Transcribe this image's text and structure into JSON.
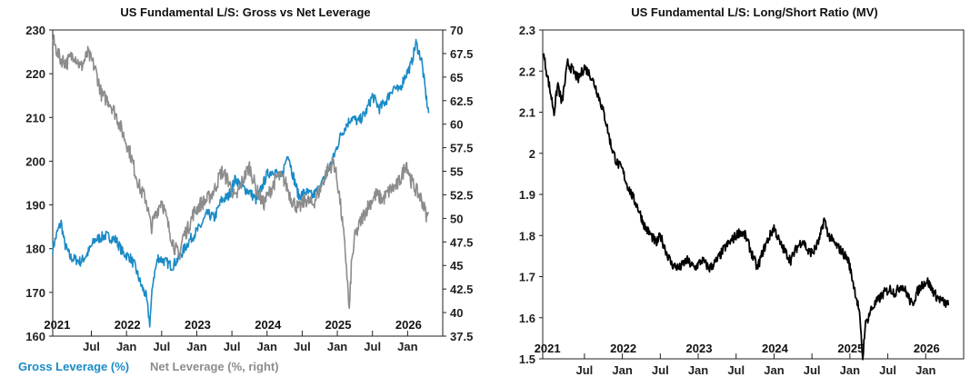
{
  "chart_data": [
    {
      "type": "line",
      "title": "US Fundamental L/S: Gross vs Net Leverage",
      "y_left": {
        "ylim": [
          160,
          230
        ],
        "ticks": [
          "160",
          "170",
          "180",
          "190",
          "200",
          "210",
          "220",
          "230"
        ]
      },
      "y_right": {
        "ylim": [
          37.5,
          70
        ],
        "ticks": [
          "37.5",
          "40",
          "42.5",
          "45",
          "47.5",
          "50",
          "52.5",
          "55",
          "57.5",
          "60",
          "62.5",
          "65",
          "67.5",
          "70"
        ]
      },
      "x_range": [
        2020.95,
        2026.5
      ],
      "year_labels": [
        {
          "x": 2021.0,
          "label": "2021"
        },
        {
          "x": 2022.0,
          "label": "2022"
        },
        {
          "x": 2023.0,
          "label": "2023"
        },
        {
          "x": 2024.0,
          "label": "2024"
        },
        {
          "x": 2025.0,
          "label": "2025"
        },
        {
          "x": 2026.0,
          "label": "2026"
        }
      ],
      "month_labels": [
        {
          "x": 2021.5,
          "label": "Jul"
        },
        {
          "x": 2022.0,
          "label": "Jan"
        },
        {
          "x": 2022.5,
          "label": "Jul"
        },
        {
          "x": 2023.0,
          "label": "Jan"
        },
        {
          "x": 2023.5,
          "label": "Jul"
        },
        {
          "x": 2024.0,
          "label": "Jan"
        },
        {
          "x": 2024.5,
          "label": "Jul"
        },
        {
          "x": 2025.0,
          "label": "Jan"
        },
        {
          "x": 2025.5,
          "label": "Jul"
        },
        {
          "x": 2026.0,
          "label": "Jan"
        }
      ],
      "series": [
        {
          "name": "Gross Leverage (%)",
          "axis": "left",
          "color": "#1a8ac6",
          "points": [
            [
              2020.95,
              180
            ],
            [
              2021.02,
              184
            ],
            [
              2021.07,
              186
            ],
            [
              2021.12,
              181
            ],
            [
              2021.2,
              178
            ],
            [
              2021.35,
              177
            ],
            [
              2021.45,
              179
            ],
            [
              2021.55,
              182
            ],
            [
              2021.7,
              183
            ],
            [
              2021.85,
              182
            ],
            [
              2021.95,
              179
            ],
            [
              2022.05,
              178
            ],
            [
              2022.12,
              176
            ],
            [
              2022.2,
              172
            ],
            [
              2022.28,
              169
            ],
            [
              2022.33,
              163
            ],
            [
              2022.38,
              173
            ],
            [
              2022.45,
              178
            ],
            [
              2022.55,
              177
            ],
            [
              2022.65,
              176
            ],
            [
              2022.75,
              178
            ],
            [
              2022.9,
              182
            ],
            [
              2023.05,
              185
            ],
            [
              2023.15,
              188
            ],
            [
              2023.25,
              187
            ],
            [
              2023.35,
              191
            ],
            [
              2023.45,
              192
            ],
            [
              2023.55,
              196
            ],
            [
              2023.65,
              194
            ],
            [
              2023.75,
              193
            ],
            [
              2023.85,
              191
            ],
            [
              2024.0,
              197
            ],
            [
              2024.1,
              198
            ],
            [
              2024.2,
              196
            ],
            [
              2024.3,
              202
            ],
            [
              2024.35,
              198
            ],
            [
              2024.45,
              192
            ],
            [
              2024.55,
              193
            ],
            [
              2024.65,
              192
            ],
            [
              2024.75,
              194
            ],
            [
              2024.85,
              197
            ],
            [
              2024.95,
              201
            ],
            [
              2025.05,
              206
            ],
            [
              2025.12,
              208
            ],
            [
              2025.2,
              210
            ],
            [
              2025.3,
              209
            ],
            [
              2025.4,
              211
            ],
            [
              2025.5,
              215
            ],
            [
              2025.6,
              212
            ],
            [
              2025.7,
              214
            ],
            [
              2025.8,
              217
            ],
            [
              2025.88,
              216
            ],
            [
              2025.95,
              219
            ],
            [
              2026.05,
              222
            ],
            [
              2026.12,
              227
            ],
            [
              2026.2,
              223
            ],
            [
              2026.27,
              214
            ],
            [
              2026.3,
              211
            ]
          ]
        },
        {
          "name": "Net Leverage (%, right)",
          "axis": "right",
          "color": "#8c8c8c",
          "points": [
            [
              2020.95,
              69
            ],
            [
              2021.05,
              67
            ],
            [
              2021.15,
              66.5
            ],
            [
              2021.25,
              67.5
            ],
            [
              2021.35,
              66
            ],
            [
              2021.45,
              67.5
            ],
            [
              2021.55,
              66
            ],
            [
              2021.65,
              63
            ],
            [
              2021.75,
              62.5
            ],
            [
              2021.85,
              61
            ],
            [
              2021.95,
              59
            ],
            [
              2022.05,
              57
            ],
            [
              2022.12,
              55
            ],
            [
              2022.2,
              53
            ],
            [
              2022.28,
              52
            ],
            [
              2022.35,
              49
            ],
            [
              2022.42,
              50.5
            ],
            [
              2022.5,
              52
            ],
            [
              2022.6,
              49
            ],
            [
              2022.68,
              47
            ],
            [
              2022.75,
              46
            ],
            [
              2022.8,
              48
            ],
            [
              2022.88,
              49
            ],
            [
              2022.95,
              50.5
            ],
            [
              2023.05,
              51.5
            ],
            [
              2023.15,
              52
            ],
            [
              2023.25,
              53
            ],
            [
              2023.35,
              55
            ],
            [
              2023.45,
              54
            ],
            [
              2023.55,
              52
            ],
            [
              2023.65,
              54
            ],
            [
              2023.75,
              55.5
            ],
            [
              2023.85,
              53
            ],
            [
              2023.95,
              51.5
            ],
            [
              2024.05,
              53
            ],
            [
              2024.15,
              54.5
            ],
            [
              2024.25,
              54
            ],
            [
              2024.35,
              52
            ],
            [
              2024.45,
              51
            ],
            [
              2024.55,
              52
            ],
            [
              2024.65,
              51.5
            ],
            [
              2024.75,
              53
            ],
            [
              2024.85,
              55
            ],
            [
              2024.95,
              56
            ],
            [
              2025.02,
              53
            ],
            [
              2025.08,
              49
            ],
            [
              2025.13,
              45
            ],
            [
              2025.17,
              40
            ],
            [
              2025.2,
              45
            ],
            [
              2025.25,
              48
            ],
            [
              2025.35,
              50
            ],
            [
              2025.45,
              51.5
            ],
            [
              2025.55,
              52.5
            ],
            [
              2025.65,
              52
            ],
            [
              2025.75,
              53
            ],
            [
              2025.85,
              53.5
            ],
            [
              2025.92,
              54.5
            ],
            [
              2025.98,
              56
            ],
            [
              2026.05,
              54
            ],
            [
              2026.12,
              53
            ],
            [
              2026.2,
              52
            ],
            [
              2026.28,
              50
            ],
            [
              2026.3,
              50.5
            ]
          ]
        }
      ]
    },
    {
      "type": "line",
      "title": "US Fundamental L/S: Long/Short Ratio (MV)",
      "ylim": [
        1.5,
        2.3
      ],
      "y_ticks": [
        "1.5",
        "1.6",
        "1.7",
        "1.8",
        "1.9",
        "2",
        "2.1",
        "2.2",
        "2.3"
      ],
      "x_range": [
        2020.95,
        2026.5
      ],
      "year_labels": [
        {
          "x": 2021.0,
          "label": "2021"
        },
        {
          "x": 2022.0,
          "label": "2022"
        },
        {
          "x": 2023.0,
          "label": "2023"
        },
        {
          "x": 2024.0,
          "label": "2024"
        },
        {
          "x": 2025.0,
          "label": "2025"
        },
        {
          "x": 2026.0,
          "label": "2026"
        }
      ],
      "month_labels": [
        {
          "x": 2021.5,
          "label": "Jul"
        },
        {
          "x": 2022.0,
          "label": "Jan"
        },
        {
          "x": 2022.5,
          "label": "Jul"
        },
        {
          "x": 2023.0,
          "label": "Jan"
        },
        {
          "x": 2023.5,
          "label": "Jul"
        },
        {
          "x": 2024.0,
          "label": "Jan"
        },
        {
          "x": 2024.5,
          "label": "Jul"
        },
        {
          "x": 2025.0,
          "label": "Jan"
        },
        {
          "x": 2025.5,
          "label": "Jul"
        },
        {
          "x": 2026.0,
          "label": "Jan"
        }
      ],
      "series": [
        {
          "name": "Long/Short Ratio (MV)",
          "color": "#000000",
          "points": [
            [
              2020.95,
              2.25
            ],
            [
              2021.0,
              2.2
            ],
            [
              2021.05,
              2.15
            ],
            [
              2021.1,
              2.1
            ],
            [
              2021.15,
              2.17
            ],
            [
              2021.2,
              2.12
            ],
            [
              2021.28,
              2.22
            ],
            [
              2021.35,
              2.2
            ],
            [
              2021.42,
              2.18
            ],
            [
              2021.5,
              2.21
            ],
            [
              2021.58,
              2.19
            ],
            [
              2021.65,
              2.16
            ],
            [
              2021.72,
              2.12
            ],
            [
              2021.78,
              2.08
            ],
            [
              2021.85,
              2.02
            ],
            [
              2021.92,
              1.98
            ],
            [
              2022.0,
              1.96
            ],
            [
              2022.05,
              1.93
            ],
            [
              2022.12,
              1.9
            ],
            [
              2022.2,
              1.87
            ],
            [
              2022.3,
              1.82
            ],
            [
              2022.38,
              1.8
            ],
            [
              2022.45,
              1.78
            ],
            [
              2022.5,
              1.8
            ],
            [
              2022.58,
              1.76
            ],
            [
              2022.65,
              1.73
            ],
            [
              2022.75,
              1.72
            ],
            [
              2022.85,
              1.74
            ],
            [
              2022.95,
              1.72
            ],
            [
              2023.05,
              1.74
            ],
            [
              2023.15,
              1.72
            ],
            [
              2023.25,
              1.74
            ],
            [
              2023.35,
              1.77
            ],
            [
              2023.45,
              1.79
            ],
            [
              2023.55,
              1.81
            ],
            [
              2023.62,
              1.8
            ],
            [
              2023.7,
              1.76
            ],
            [
              2023.78,
              1.72
            ],
            [
              2023.85,
              1.76
            ],
            [
              2023.92,
              1.79
            ],
            [
              2024.0,
              1.82
            ],
            [
              2024.08,
              1.78
            ],
            [
              2024.15,
              1.76
            ],
            [
              2024.22,
              1.74
            ],
            [
              2024.3,
              1.77
            ],
            [
              2024.38,
              1.79
            ],
            [
              2024.45,
              1.76
            ],
            [
              2024.52,
              1.76
            ],
            [
              2024.6,
              1.79
            ],
            [
              2024.66,
              1.84
            ],
            [
              2024.72,
              1.8
            ],
            [
              2024.8,
              1.78
            ],
            [
              2024.9,
              1.76
            ],
            [
              2024.98,
              1.74
            ],
            [
              2025.05,
              1.68
            ],
            [
              2025.12,
              1.62
            ],
            [
              2025.17,
              1.5
            ],
            [
              2025.2,
              1.58
            ],
            [
              2025.28,
              1.62
            ],
            [
              2025.36,
              1.64
            ],
            [
              2025.45,
              1.66
            ],
            [
              2025.53,
              1.67
            ],
            [
              2025.6,
              1.66
            ],
            [
              2025.68,
              1.68
            ],
            [
              2025.75,
              1.66
            ],
            [
              2025.82,
              1.63
            ],
            [
              2025.88,
              1.66
            ],
            [
              2025.95,
              1.68
            ],
            [
              2026.02,
              1.69
            ],
            [
              2026.08,
              1.67
            ],
            [
              2026.15,
              1.65
            ],
            [
              2026.22,
              1.64
            ],
            [
              2026.3,
              1.63
            ]
          ]
        }
      ]
    }
  ]
}
